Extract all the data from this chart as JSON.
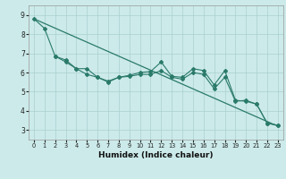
{
  "xlabel": "Humidex (Indice chaleur)",
  "x_values": [
    0,
    1,
    2,
    3,
    4,
    5,
    6,
    7,
    8,
    9,
    10,
    11,
    12,
    13,
    14,
    15,
    16,
    17,
    18,
    19,
    20,
    21,
    22,
    23
  ],
  "line_wavy": [
    8.8,
    8.3,
    6.85,
    6.65,
    6.2,
    6.2,
    5.75,
    5.5,
    5.75,
    5.85,
    6.0,
    6.05,
    6.55,
    5.8,
    5.75,
    6.2,
    6.1,
    5.35,
    6.1,
    4.55,
    4.5,
    4.35,
    3.35,
    3.25
  ],
  "line_straight": [
    [
      0,
      8.8
    ],
    [
      23,
      3.2
    ]
  ],
  "line_lower": [
    6.85,
    6.55,
    6.2,
    5.9,
    5.75,
    5.55,
    5.75,
    5.8,
    5.9,
    5.9,
    6.1,
    5.75,
    5.65,
    6.0,
    5.9,
    5.15,
    5.75,
    4.5,
    4.55,
    4.35,
    3.35,
    3.25
  ],
  "background_color": "#cceaea",
  "grid_color": "#aacfcf",
  "line_color": "#2a7a6a",
  "ylim": [
    2.5,
    9.5
  ],
  "xlim": [
    -0.5,
    23.5
  ],
  "yticks": [
    3,
    4,
    5,
    6,
    7,
    8,
    9
  ],
  "xticks": [
    0,
    1,
    2,
    3,
    4,
    5,
    6,
    7,
    8,
    9,
    10,
    11,
    12,
    13,
    14,
    15,
    16,
    17,
    18,
    19,
    20,
    21,
    22,
    23
  ]
}
